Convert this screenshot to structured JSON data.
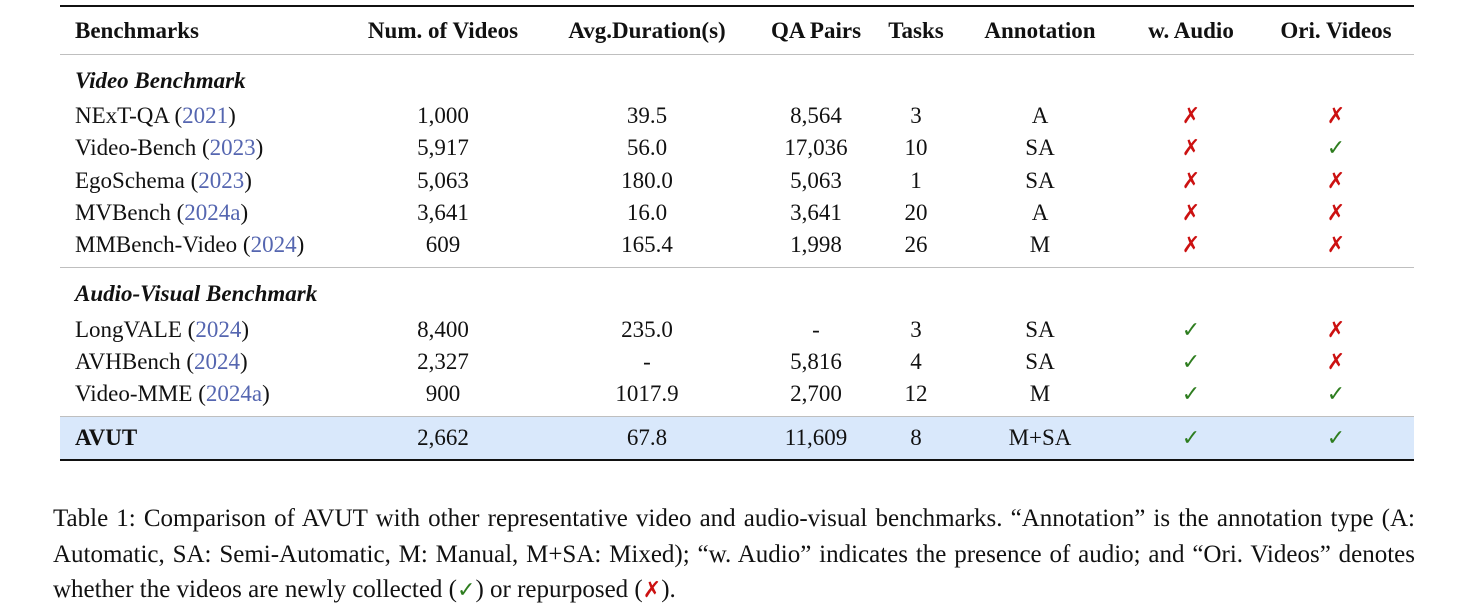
{
  "table": {
    "headers": [
      "Benchmarks",
      "Num. of Videos",
      "Avg.Duration(s)",
      "QA Pairs",
      "Tasks",
      "Annotation",
      "w. Audio",
      "Ori. Videos"
    ],
    "sections": [
      {
        "title": "Video Benchmark",
        "rows": [
          {
            "name": "NExT-QA",
            "cite": "2021",
            "videos": "1,000",
            "duration": "39.5",
            "qa": "8,564",
            "tasks": "3",
            "annotation": "A",
            "audio": "✗",
            "ori": "✗"
          },
          {
            "name": "Video-Bench",
            "cite": "2023",
            "videos": "5,917",
            "duration": "56.0",
            "qa": "17,036",
            "tasks": "10",
            "annotation": "SA",
            "audio": "✗",
            "ori": "✓"
          },
          {
            "name": "EgoSchema",
            "cite": "2023",
            "videos": "5,063",
            "duration": "180.0",
            "qa": "5,063",
            "tasks": "1",
            "annotation": "SA",
            "audio": "✗",
            "ori": "✗"
          },
          {
            "name": "MVBench",
            "cite": "2024a",
            "videos": "3,641",
            "duration": "16.0",
            "qa": "3,641",
            "tasks": "20",
            "annotation": "A",
            "audio": "✗",
            "ori": "✗"
          },
          {
            "name": "MMBench-Video",
            "cite": "2024",
            "videos": "609",
            "duration": "165.4",
            "qa": "1,998",
            "tasks": "26",
            "annotation": "M",
            "audio": "✗",
            "ori": "✗"
          }
        ]
      },
      {
        "title": "Audio-Visual Benchmark",
        "rows": [
          {
            "name": "LongVALE",
            "cite": "2024",
            "videos": "8,400",
            "duration": "235.0",
            "qa": "-",
            "tasks": "3",
            "annotation": "SA",
            "audio": "✓",
            "ori": "✗"
          },
          {
            "name": "AVHBench",
            "cite": "2024",
            "videos": "2,327",
            "duration": "-",
            "qa": "5,816",
            "tasks": "4",
            "annotation": "SA",
            "audio": "✓",
            "ori": "✗"
          },
          {
            "name": "Video-MME",
            "cite": "2024a",
            "videos": "900",
            "duration": "1017.9",
            "qa": "2,700",
            "tasks": "12",
            "annotation": "M",
            "audio": "✓",
            "ori": "✓"
          }
        ]
      }
    ],
    "ours": {
      "name": "AVUT",
      "videos": "2,662",
      "duration": "67.8",
      "qa": "11,609",
      "tasks": "8",
      "annotation": "M+SA",
      "audio": "✓",
      "ori": "✓"
    }
  },
  "caption": {
    "part1": "Table 1: Comparison of AVUT with other representative video and audio-visual benchmarks. “Annotation” is the annotation type (A: Automatic, SA: Semi-Automatic, M: Manual, M+SA: Mixed); “w. Audio” indicates the presence of audio; and “Ori. Videos” denotes whether the videos are newly collected (",
    "check": "✓",
    "part2": ") or repurposed (",
    "cross": "✗",
    "part3": ")."
  },
  "colors": {
    "cross": "#cc1111",
    "check": "#2e7d1f",
    "cite": "#5566b0",
    "highlight": "#d9e8fb"
  }
}
